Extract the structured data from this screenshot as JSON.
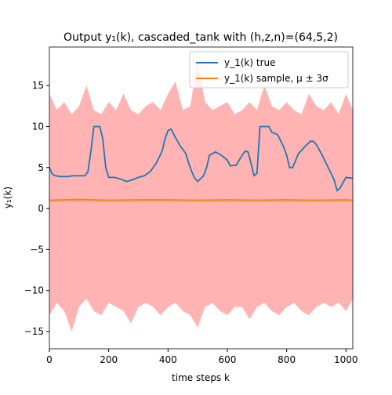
{
  "chart_data": {
    "type": "line",
    "title": "Output y₁(k), cascaded_tank with (h,z,n)=(64,5,2)",
    "xlabel": "time steps k",
    "ylabel": "y₁(k)",
    "xlim": [
      0,
      1023
    ],
    "ylim": [
      -17.1,
      19.7
    ],
    "xticks": [
      0,
      200,
      400,
      600,
      800,
      1000
    ],
    "yticks": [
      {
        "value": -15,
        "label": "−15"
      },
      {
        "value": -10,
        "label": "−10"
      },
      {
        "value": -5,
        "label": "−5"
      },
      0,
      5,
      10,
      15
    ],
    "legend": "upper right",
    "band": {
      "color": "#ffb3b3",
      "x": [
        0,
        25,
        50,
        75,
        100,
        125,
        150,
        175,
        200,
        225,
        250,
        275,
        300,
        325,
        350,
        375,
        400,
        425,
        450,
        475,
        500,
        525,
        550,
        575,
        600,
        625,
        650,
        675,
        700,
        725,
        750,
        775,
        800,
        825,
        850,
        875,
        900,
        925,
        950,
        975,
        1000,
        1023
      ],
      "upper": [
        14,
        12,
        13,
        11.5,
        12.5,
        15,
        12,
        11.5,
        13,
        12,
        14,
        12,
        11.5,
        12.5,
        13,
        12,
        14,
        15.5,
        12,
        12.5,
        18,
        13,
        12,
        12.5,
        13,
        11.5,
        12,
        13,
        12,
        15,
        12.5,
        12,
        13,
        12,
        11.5,
        14,
        12.5,
        12,
        13,
        11.5,
        14,
        12
      ],
      "lower": [
        -13,
        -11.5,
        -12.5,
        -15,
        -12,
        -11,
        -12.5,
        -13,
        -11.5,
        -12,
        -12.5,
        -14,
        -12,
        -11.5,
        -12,
        -13,
        -12,
        -11.5,
        -12.5,
        -13,
        -14.5,
        -12,
        -11.5,
        -12.5,
        -13,
        -12,
        -12,
        -13.5,
        -12,
        -11.5,
        -12.5,
        -13,
        -12,
        -11.5,
        -12.5,
        -13,
        -12,
        -11.5,
        -12,
        -11.5,
        -12.5,
        -11
      ]
    },
    "series": [
      {
        "name": "y_1(k) true",
        "color": "#1f77b4",
        "x": [
          0,
          10,
          20,
          40,
          60,
          80,
          100,
          120,
          130,
          140,
          150,
          170,
          180,
          190,
          200,
          220,
          240,
          260,
          280,
          300,
          320,
          340,
          360,
          380,
          390,
          400,
          410,
          420,
          440,
          460,
          470,
          480,
          490,
          500,
          520,
          530,
          540,
          560,
          580,
          600,
          610,
          630,
          650,
          660,
          670,
          680,
          690,
          700,
          710,
          740,
          750,
          770,
          790,
          800,
          810,
          820,
          840,
          860,
          880,
          890,
          900,
          920,
          940,
          960,
          970,
          980,
          1000,
          1023
        ],
        "values": [
          5.0,
          4.2,
          4.0,
          3.9,
          3.9,
          4.0,
          4.0,
          4.0,
          4.5,
          7,
          10,
          10,
          8.5,
          5,
          3.8,
          3.8,
          3.6,
          3.3,
          3.5,
          3.8,
          4.0,
          4.5,
          5.5,
          7,
          8.5,
          9.5,
          9.7,
          9.0,
          7.7,
          6.7,
          5.5,
          4.5,
          3.7,
          3.3,
          4.0,
          5,
          6.5,
          6.9,
          6.5,
          5.9,
          5.2,
          5.3,
          6.5,
          7.0,
          6.9,
          5.5,
          4.0,
          4.3,
          10,
          10,
          9.3,
          9.0,
          7.5,
          6.5,
          5.0,
          5.0,
          6.7,
          7.5,
          8.2,
          8.2,
          7.8,
          6.5,
          5.0,
          3.5,
          2.2,
          2.5,
          3.8,
          3.7
        ]
      },
      {
        "name": "y_1(k) sample, μ ± 3σ",
        "color": "#ff7f0e",
        "x": [
          0,
          100,
          200,
          300,
          400,
          500,
          600,
          700,
          800,
          900,
          1000,
          1023
        ],
        "values": [
          1.0,
          1.1,
          1.0,
          1.05,
          1.05,
          1.0,
          1.05,
          1.0,
          1.05,
          1.0,
          1.05,
          1.0
        ]
      }
    ]
  }
}
